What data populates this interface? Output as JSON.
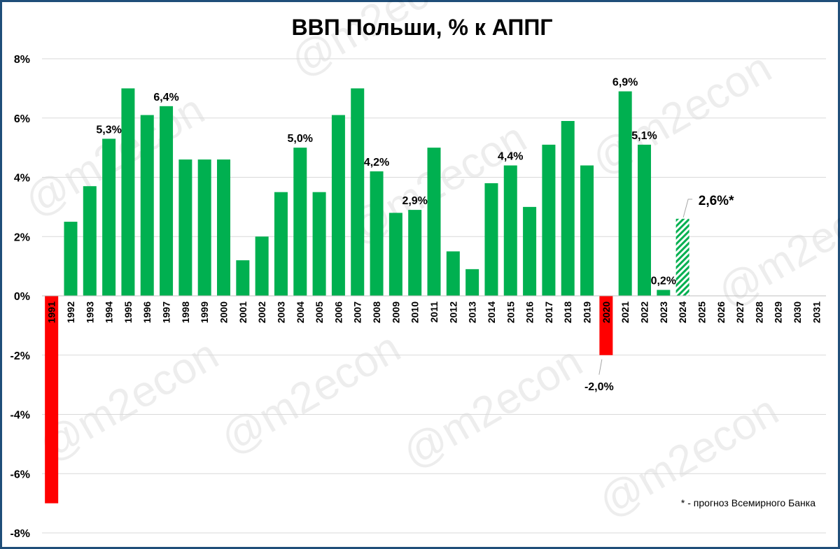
{
  "chart_data": {
    "type": "bar",
    "title": "ВВП Польши, % к АППГ",
    "xlabel": "",
    "ylabel": "",
    "ylim": [
      -8,
      8
    ],
    "yticks": [
      "-8%",
      "-6%",
      "-4%",
      "-2%",
      "0%",
      "2%",
      "4%",
      "6%",
      "8%"
    ],
    "ytick_values": [
      -8,
      -6,
      -4,
      -2,
      0,
      2,
      4,
      6,
      8
    ],
    "grid": true,
    "categories": [
      "1991",
      "1992",
      "1993",
      "1994",
      "1995",
      "1996",
      "1997",
      "1998",
      "1999",
      "2000",
      "2001",
      "2002",
      "2003",
      "2004",
      "2005",
      "2006",
      "2007",
      "2008",
      "2009",
      "2010",
      "2011",
      "2012",
      "2013",
      "2014",
      "2015",
      "2016",
      "2017",
      "2018",
      "2019",
      "2020",
      "2021",
      "2022",
      "2023",
      "2024",
      "2025",
      "2026",
      "2027",
      "2028",
      "2029",
      "2030",
      "2031"
    ],
    "values": [
      -7.0,
      2.5,
      3.7,
      5.3,
      7.0,
      6.1,
      6.4,
      4.6,
      4.6,
      4.6,
      1.2,
      2.0,
      3.5,
      5.0,
      3.5,
      6.1,
      7.0,
      4.2,
      2.8,
      2.9,
      5.0,
      1.5,
      0.9,
      3.8,
      4.4,
      3.0,
      5.1,
      5.9,
      4.4,
      -2.0,
      6.9,
      5.1,
      0.2,
      2.6,
      null,
      null,
      null,
      null,
      null,
      null,
      null
    ],
    "bar_kinds": [
      "negative",
      "actual",
      "actual",
      "actual",
      "actual",
      "actual",
      "actual",
      "actual",
      "actual",
      "actual",
      "actual",
      "actual",
      "actual",
      "actual",
      "actual",
      "actual",
      "actual",
      "actual",
      "actual",
      "actual",
      "actual",
      "actual",
      "actual",
      "actual",
      "actual",
      "actual",
      "actual",
      "actual",
      "actual",
      "negative",
      "actual",
      "actual",
      "actual",
      "forecast",
      "",
      "",
      "",
      "",
      "",
      "",
      ""
    ],
    "colors": {
      "actual": "#00b050",
      "negative": "#ff0000",
      "forecast": "#00b050",
      "grid": "#d9d9d9"
    },
    "data_labels": [
      {
        "index": 3,
        "text": "5,3%"
      },
      {
        "index": 6,
        "text": "6,4%"
      },
      {
        "index": 13,
        "text": "5,0%"
      },
      {
        "index": 17,
        "text": "4,2%"
      },
      {
        "index": 19,
        "text": "2,9%"
      },
      {
        "index": 24,
        "text": "4,4%"
      },
      {
        "index": 29,
        "text": "-2,0%"
      },
      {
        "index": 30,
        "text": "6,9%"
      },
      {
        "index": 31,
        "text": "5,1%"
      },
      {
        "index": 32,
        "text": "0,2%"
      },
      {
        "index": 33,
        "text": "2,6%*"
      }
    ],
    "footnote": "* - прогноз Всемирного Банка",
    "watermark": "@m2econ"
  }
}
